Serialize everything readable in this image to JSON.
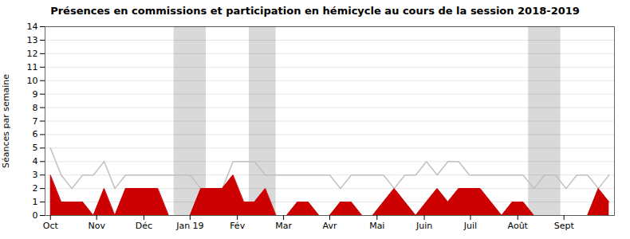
{
  "chart_data": {
    "type": "line",
    "title": "Présences en commissions et participation en hémicycle au cours de la session 2018-2019",
    "ylabel": "Séances par semaine",
    "x": [
      0,
      1,
      2,
      3,
      4,
      5,
      6,
      7,
      8,
      9,
      10,
      11,
      12,
      13,
      14,
      15,
      16,
      17,
      18,
      19,
      20,
      21,
      22,
      23,
      24,
      25,
      26,
      27,
      28,
      29,
      30,
      31,
      32,
      33,
      34,
      35,
      36,
      37,
      38,
      39,
      40,
      41,
      42,
      43,
      44,
      45,
      46,
      47,
      48,
      49,
      50,
      51,
      52
    ],
    "series": [
      {
        "type": "line",
        "color": "#c0c0c0",
        "values": [
          5,
          3,
          2,
          3,
          3,
          4,
          2,
          3,
          3,
          3,
          3,
          3,
          3,
          3,
          2,
          2,
          2,
          4,
          4,
          4,
          3,
          3,
          3,
          3,
          3,
          3,
          3,
          2,
          3,
          3,
          3,
          3,
          2,
          3,
          3,
          4,
          3,
          4,
          4,
          3,
          3,
          3,
          3,
          3,
          3,
          2,
          3,
          3,
          2,
          3,
          3,
          2,
          3
        ]
      },
      {
        "type": "area",
        "color": "#cc0000",
        "values": [
          3,
          1,
          1,
          1,
          0,
          2,
          0,
          2,
          2,
          2,
          2,
          0,
          0,
          0,
          2,
          2,
          2,
          3,
          1,
          1,
          2,
          0,
          0,
          1,
          1,
          0,
          0,
          1,
          1,
          0,
          0,
          1,
          2,
          1,
          0,
          1,
          2,
          1,
          2,
          2,
          2,
          1,
          0,
          1,
          1,
          0,
          0,
          0,
          0,
          0,
          0,
          2,
          1
        ]
      }
    ],
    "gray_bands": [
      [
        11.5,
        14.5
      ],
      [
        18.5,
        21.0
      ],
      [
        44.5,
        47.5
      ]
    ],
    "xlim": [
      -0.5,
      52.5
    ],
    "xticks": [
      {
        "value": 0,
        "label": "Oct"
      },
      {
        "value": 4.3,
        "label": "Nov"
      },
      {
        "value": 8.7,
        "label": "Déc"
      },
      {
        "value": 13.0,
        "label": "Jan 19"
      },
      {
        "value": 17.4,
        "label": "Fév"
      },
      {
        "value": 21.7,
        "label": "Mar"
      },
      {
        "value": 26.0,
        "label": "Avr"
      },
      {
        "value": 30.4,
        "label": "Mai"
      },
      {
        "value": 34.8,
        "label": "Juin"
      },
      {
        "value": 39.1,
        "label": "Juil"
      },
      {
        "value": 43.5,
        "label": "Août"
      },
      {
        "value": 47.8,
        "label": "Sept"
      }
    ],
    "ylim": [
      0,
      14
    ],
    "yticks": [
      0,
      1,
      2,
      3,
      4,
      5,
      6,
      7,
      8,
      9,
      10,
      11,
      12,
      13,
      14
    ],
    "grid": true
  }
}
